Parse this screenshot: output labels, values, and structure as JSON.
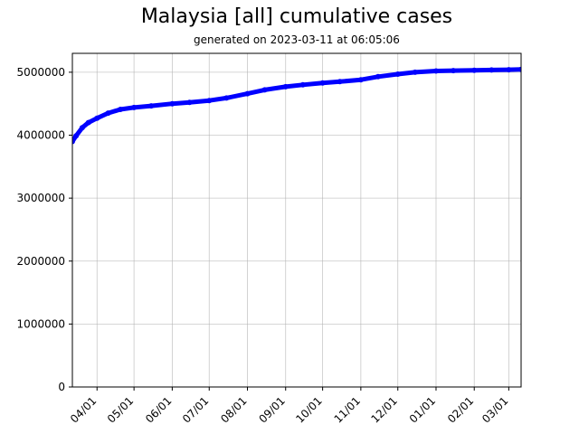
{
  "chart_data": {
    "type": "line",
    "title": "Malaysia [all] cumulative cases",
    "subtitle": "generated on 2023-03-11 at 06:05:06",
    "xlabel": "",
    "ylabel": "",
    "x_range": [
      "2022-03-12",
      "2023-03-11"
    ],
    "ylim": [
      0,
      5300000
    ],
    "yticks": [
      0,
      1000000,
      2000000,
      3000000,
      4000000,
      5000000
    ],
    "xticks": [
      {
        "date": "2022-04-01",
        "label": "04/01"
      },
      {
        "date": "2022-05-01",
        "label": "05/01"
      },
      {
        "date": "2022-06-01",
        "label": "06/01"
      },
      {
        "date": "2022-07-01",
        "label": "07/01"
      },
      {
        "date": "2022-08-01",
        "label": "08/01"
      },
      {
        "date": "2022-09-01",
        "label": "09/01"
      },
      {
        "date": "2022-10-01",
        "label": "10/01"
      },
      {
        "date": "2022-11-01",
        "label": "11/01"
      },
      {
        "date": "2022-12-01",
        "label": "12/01"
      },
      {
        "date": "2023-01-01",
        "label": "01/01"
      },
      {
        "date": "2023-02-01",
        "label": "02/01"
      },
      {
        "date": "2023-03-01",
        "label": "03/01"
      }
    ],
    "grid": true,
    "series_color": "#0000ff",
    "series": [
      {
        "points": [
          [
            "2022-03-12",
            3900000
          ],
          [
            "2022-03-15",
            3990000
          ],
          [
            "2022-03-20",
            4120000
          ],
          [
            "2022-03-25",
            4200000
          ],
          [
            "2022-04-01",
            4270000
          ],
          [
            "2022-04-10",
            4350000
          ],
          [
            "2022-04-20",
            4410000
          ],
          [
            "2022-05-01",
            4440000
          ],
          [
            "2022-05-15",
            4465000
          ],
          [
            "2022-06-01",
            4500000
          ],
          [
            "2022-06-15",
            4520000
          ],
          [
            "2022-07-01",
            4550000
          ],
          [
            "2022-07-15",
            4590000
          ],
          [
            "2022-08-01",
            4660000
          ],
          [
            "2022-08-15",
            4720000
          ],
          [
            "2022-09-01",
            4770000
          ],
          [
            "2022-09-15",
            4800000
          ],
          [
            "2022-10-01",
            4830000
          ],
          [
            "2022-10-15",
            4850000
          ],
          [
            "2022-11-01",
            4880000
          ],
          [
            "2022-11-15",
            4930000
          ],
          [
            "2022-12-01",
            4970000
          ],
          [
            "2022-12-15",
            5000000
          ],
          [
            "2023-01-01",
            5020000
          ],
          [
            "2023-01-15",
            5025000
          ],
          [
            "2023-02-01",
            5030000
          ],
          [
            "2023-02-15",
            5035000
          ],
          [
            "2023-03-01",
            5040000
          ],
          [
            "2023-03-11",
            5045000
          ]
        ]
      }
    ]
  }
}
